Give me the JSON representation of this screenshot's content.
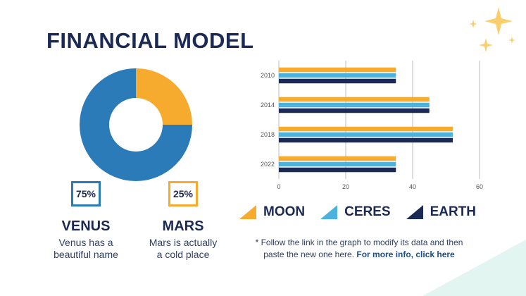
{
  "title": "FINANCIAL MODEL",
  "colors": {
    "navy": "#1b2a54",
    "orange": "#f7ab2e",
    "blue": "#2a7bb8",
    "sky": "#4bb3de",
    "mint": "#dff4ef",
    "sparkle": "#f9cf6b"
  },
  "donut": {
    "slices": [
      {
        "label": "VENUS",
        "value": 75,
        "color": "#2a7bb8"
      },
      {
        "label": "MARS",
        "value": 25,
        "color": "#f7ab2e"
      }
    ]
  },
  "stats": [
    {
      "percent": "75%",
      "name": "VENUS",
      "desc_line1": "Venus has a",
      "desc_line2": "beautiful name"
    },
    {
      "percent": "25%",
      "name": "MARS",
      "desc_line1": "Mars is actually",
      "desc_line2": "a cold place"
    }
  ],
  "chart_data": {
    "type": "bar",
    "orientation": "horizontal",
    "categories": [
      "2010",
      "2014",
      "2018",
      "2022"
    ],
    "series": [
      {
        "name": "MOON",
        "values": [
          35,
          45,
          52,
          35
        ],
        "color": "#f7ab2e"
      },
      {
        "name": "CERES",
        "values": [
          35,
          45,
          52,
          35
        ],
        "color": "#4bb3de"
      },
      {
        "name": "EARTH",
        "values": [
          35,
          45,
          52,
          35
        ],
        "color": "#1b2a54"
      }
    ],
    "xlim": [
      0,
      60
    ],
    "xticks": [
      "0",
      "20",
      "40",
      "60"
    ],
    "grid": true,
    "legend": "bottom"
  },
  "note": {
    "line1": "* Follow the link in the graph to modify its data and then",
    "line2": "paste the new one here.",
    "link": "For more info, click here"
  }
}
